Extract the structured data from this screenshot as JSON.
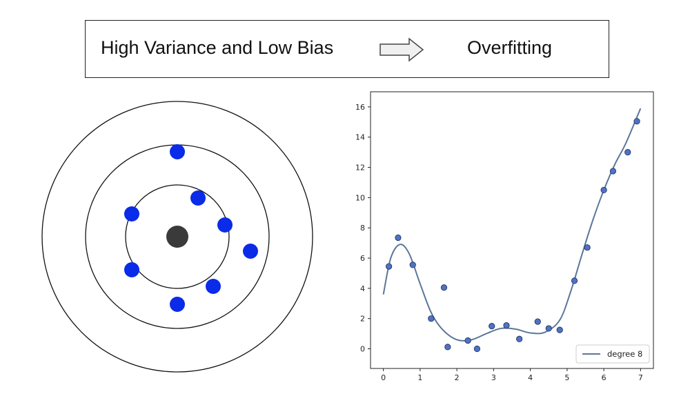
{
  "header": {
    "left_text": "High Variance and Low Bias",
    "right_text": "Overfitting"
  },
  "target": {
    "ring_color": "#111111",
    "center_color": "#3a3a3a",
    "dot_color": "#0a2be8",
    "shots": [
      {
        "dx": 0.0,
        "dy": 1.23
      },
      {
        "dx": 0.3,
        "dy": 0.56
      },
      {
        "dx": -0.66,
        "dy": 0.33
      },
      {
        "dx": 0.69,
        "dy": 0.17
      },
      {
        "dx": 1.06,
        "dy": -0.21
      },
      {
        "dx": -0.66,
        "dy": -0.48
      },
      {
        "dx": 0.52,
        "dy": -0.72
      },
      {
        "dx": 0.0,
        "dy": -0.98
      }
    ]
  },
  "chart_data": {
    "type": "scatter",
    "x_ticks": [
      0,
      1,
      2,
      3,
      4,
      5,
      6,
      7
    ],
    "y_ticks": [
      0,
      2,
      4,
      6,
      8,
      10,
      12,
      14,
      16
    ],
    "xlim": [
      -0.35,
      7.35
    ],
    "ylim": [
      -1.3,
      17.0
    ],
    "points": [
      {
        "x": 0.15,
        "y": 5.45
      },
      {
        "x": 0.4,
        "y": 7.35
      },
      {
        "x": 0.8,
        "y": 5.55
      },
      {
        "x": 1.3,
        "y": 2.0
      },
      {
        "x": 1.65,
        "y": 4.05
      },
      {
        "x": 1.75,
        "y": 0.12
      },
      {
        "x": 2.3,
        "y": 0.55
      },
      {
        "x": 2.55,
        "y": 0.0
      },
      {
        "x": 2.95,
        "y": 1.5
      },
      {
        "x": 3.35,
        "y": 1.55
      },
      {
        "x": 3.7,
        "y": 0.65
      },
      {
        "x": 4.2,
        "y": 1.8
      },
      {
        "x": 4.5,
        "y": 1.35
      },
      {
        "x": 4.8,
        "y": 1.25
      },
      {
        "x": 5.2,
        "y": 4.5
      },
      {
        "x": 5.55,
        "y": 6.7
      },
      {
        "x": 6.0,
        "y": 10.5
      },
      {
        "x": 6.25,
        "y": 11.75
      },
      {
        "x": 6.65,
        "y": 13.0
      },
      {
        "x": 6.9,
        "y": 15.05
      }
    ],
    "series": [
      {
        "name": "degree 8",
        "color": "#5a7699",
        "x": [
          0.0,
          0.2,
          0.45,
          0.7,
          1.0,
          1.3,
          1.6,
          2.0,
          2.4,
          2.8,
          3.2,
          3.6,
          4.0,
          4.4,
          4.8,
          5.1,
          5.4,
          5.7,
          6.0,
          6.3,
          6.6,
          7.0
        ],
        "y": [
          3.6,
          6.0,
          6.9,
          6.3,
          4.3,
          2.4,
          1.3,
          0.6,
          0.6,
          1.0,
          1.35,
          1.3,
          1.05,
          1.1,
          1.9,
          3.8,
          6.2,
          8.5,
          10.5,
          12.2,
          13.6,
          15.9
        ]
      }
    ],
    "point_color": "#4f72c4",
    "legend_position": "lower-right",
    "grid": false
  }
}
